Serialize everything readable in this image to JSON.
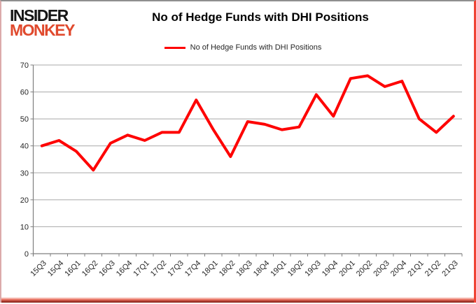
{
  "logo": {
    "line1": "INSIDER",
    "line2": "MONKEY",
    "accent_color": "#e04a2e"
  },
  "header": {
    "title": "No of Hedge Funds with DHI Positions"
  },
  "legend": {
    "label": "No of Hedge Funds with DHI Positions",
    "swatch_color": "#fe0000"
  },
  "colors": {
    "series_line": "#fe0000",
    "gridline": "#a8a8a8",
    "axis": "#7f7f7f",
    "tick_text": "#262626",
    "border_top": "#8f8f8f",
    "border_left": "#dcaaaa",
    "border_right": "#ef4334",
    "border_bottom": "#7a150c"
  },
  "chart_data": {
    "type": "line",
    "title": "No of Hedge Funds with DHI Positions",
    "categories": [
      "15Q3",
      "15Q4",
      "16Q1",
      "16Q2",
      "16Q3",
      "16Q4",
      "17Q1",
      "17Q2",
      "17Q3",
      "17Q4",
      "18Q1",
      "18Q2",
      "18Q3",
      "18Q4",
      "19Q1",
      "19Q2",
      "19Q3",
      "19Q4",
      "20Q1",
      "20Q2",
      "20Q3",
      "20Q4",
      "21Q1",
      "21Q2",
      "21Q3"
    ],
    "series": [
      {
        "name": "No of Hedge Funds with DHI Positions",
        "color": "#fe0000",
        "values": [
          40,
          42,
          38,
          31,
          41,
          44,
          42,
          45,
          45,
          57,
          46,
          36,
          49,
          48,
          46,
          47,
          59,
          51,
          65,
          66,
          62,
          64,
          50,
          45,
          51
        ]
      }
    ],
    "xlabel": "",
    "ylabel": "",
    "ylim": [
      0,
      70
    ],
    "yticks": [
      0,
      10,
      20,
      30,
      40,
      50,
      60,
      70
    ],
    "grid": true,
    "legend_position": "top-center",
    "x_tick_rotation_deg": 45
  }
}
